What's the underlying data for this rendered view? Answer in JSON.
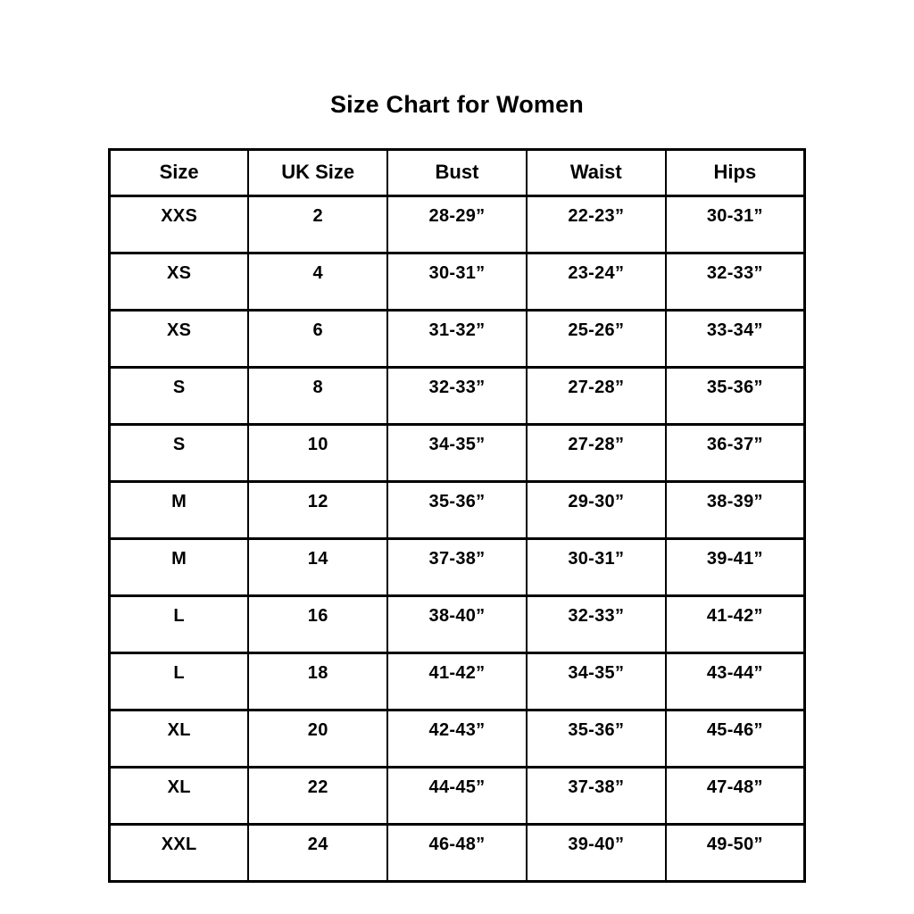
{
  "title": "Size Chart for Women",
  "colors": {
    "background": "#ffffff",
    "border": "#000000",
    "text": "#000000"
  },
  "chart_data": {
    "type": "table",
    "title": "Size Chart for Women",
    "columns": [
      "Size",
      "UK Size",
      "Bust",
      "Waist",
      "Hips"
    ],
    "rows": [
      [
        "XXS",
        "2",
        "28-29”",
        "22-23”",
        "30-31”"
      ],
      [
        "XS",
        "4",
        "30-31”",
        "23-24”",
        "32-33”"
      ],
      [
        "XS",
        "6",
        "31-32”",
        "25-26”",
        "33-34”"
      ],
      [
        "S",
        "8",
        "32-33”",
        "27-28”",
        "35-36”"
      ],
      [
        "S",
        "10",
        "34-35”",
        "27-28”",
        "36-37”"
      ],
      [
        "M",
        "12",
        "35-36”",
        "29-30”",
        "38-39”"
      ],
      [
        "M",
        "14",
        "37-38”",
        "30-31”",
        "39-41”"
      ],
      [
        "L",
        "16",
        "38-40”",
        "32-33”",
        "41-42”"
      ],
      [
        "L",
        "18",
        "41-42”",
        "34-35”",
        "43-44”"
      ],
      [
        "XL",
        "20",
        "42-43”",
        "35-36”",
        "45-46”"
      ],
      [
        "XL",
        "22",
        "44-45”",
        "37-38”",
        "47-48”"
      ],
      [
        "XXL",
        "24",
        "46-48”",
        "39-40”",
        "49-50”"
      ]
    ]
  }
}
